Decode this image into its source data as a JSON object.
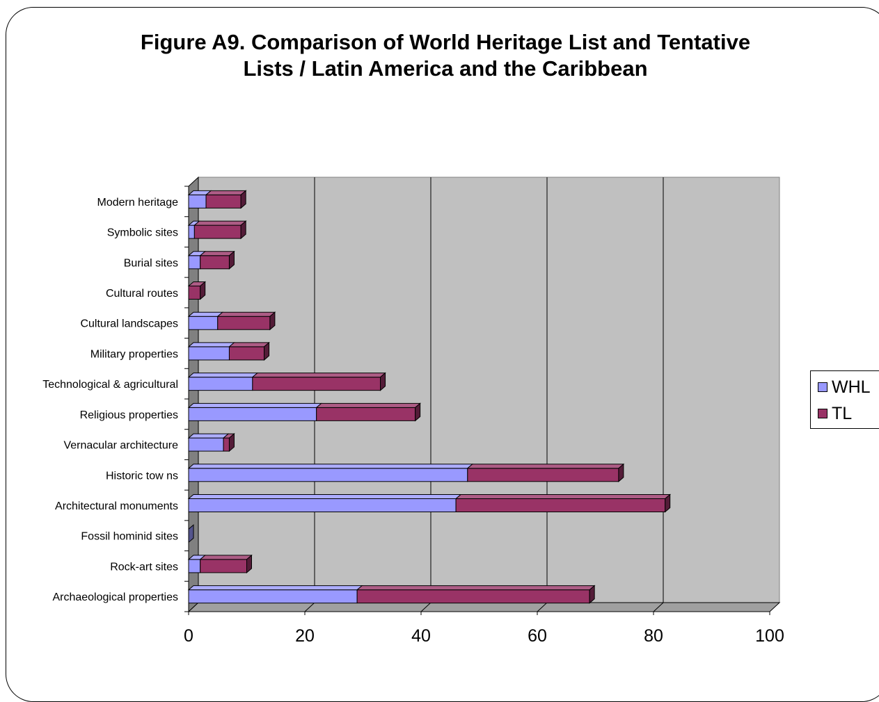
{
  "chart_data": {
    "type": "bar",
    "orientation": "horizontal",
    "stacked": true,
    "title": "Figure A9. Comparison of World Heritage List and Tentative Lists / Latin America and the Caribbean",
    "title_lines": [
      "Figure A9. Comparison of World Heritage List and Tentative",
      "Lists / Latin America and the Caribbean"
    ],
    "categories": [
      "Archaeological properties",
      "Rock-art sites",
      "Fossil hominid sites",
      "Architectural monuments",
      "Historic tow ns",
      "Vernacular architecture",
      "Religious properties",
      "Technological & agricultural",
      "Military properties",
      "Cultural landscapes",
      "Cultural routes",
      "Burial sites",
      "Symbolic sites",
      "Modern heritage"
    ],
    "series": [
      {
        "name": "WHL",
        "color": "#9999ff",
        "values": [
          29,
          2,
          0,
          46,
          48,
          6,
          22,
          11,
          7,
          5,
          0,
          2,
          1,
          3
        ]
      },
      {
        "name": "TL",
        "color": "#993366",
        "values": [
          40,
          8,
          0,
          36,
          26,
          1,
          17,
          22,
          6,
          9,
          2,
          5,
          8,
          6
        ]
      }
    ],
    "xlim": [
      0,
      100
    ],
    "x_ticks": [
      "0",
      "20",
      "40",
      "60",
      "80",
      "100"
    ],
    "grid": true,
    "legend_position": "right"
  }
}
